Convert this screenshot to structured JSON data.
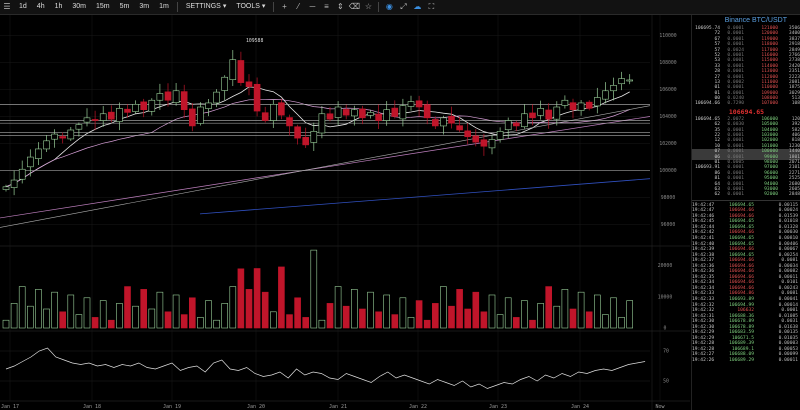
{
  "toolbar": {
    "menu_icon": "hamburger-icon",
    "intervals": [
      "1d",
      "4h",
      "1h",
      "30m",
      "15m",
      "5m",
      "3m",
      "1m"
    ],
    "settings_label": "SETTINGS",
    "tools_label": "TOOLS"
  },
  "chart_data": {
    "type": "candlestick",
    "x_ticks": [
      "Jan 17",
      "Jan 18",
      "Jan 19",
      "Jan 20",
      "Jan 21",
      "Jan 22",
      "Jan 23",
      "Jan 24",
      "Now"
    ],
    "price_ticks": [
      "110000",
      "108000",
      "106000",
      "104000",
      "102000",
      "100000",
      "98000",
      "96000"
    ],
    "price_range": [
      94500,
      111500
    ],
    "annotation": "109588",
    "volume_ticks": [
      "20000",
      "10000",
      "0"
    ],
    "volume_range": [
      0,
      26000
    ],
    "rsi_ticks": [
      "70",
      "50"
    ],
    "rsi_range": [
      38,
      82
    ],
    "up_color": "#9ad09a",
    "down_color": "#c0152a"
  },
  "orderbook": {
    "title": "Binance BTC/USDT",
    "asks": [
      [
        "106695.74",
        "0.0001",
        "121000",
        "3506"
      ],
      [
        "72",
        "0.0001",
        "120000",
        "3400"
      ],
      [
        "67",
        "0.0001",
        "119000",
        "3837"
      ],
      [
        "57",
        "0.0001",
        "118000",
        "2918"
      ],
      [
        "57",
        "0.0024",
        "117000",
        "2849"
      ],
      [
        "52",
        "0.0001",
        "116000",
        "2766"
      ],
      [
        "53",
        "0.0001",
        "115000",
        "2738"
      ],
      [
        "33",
        "0.0001",
        "114000",
        "2420"
      ],
      [
        "28",
        "0.0001",
        "113000",
        "2351"
      ],
      [
        "27",
        "0.0001",
        "112000",
        "2223"
      ],
      [
        "13",
        "0.0002",
        "111000",
        "2081"
      ],
      [
        "01",
        "0.0001",
        "110000",
        "1875"
      ],
      [
        "01",
        "0.0001",
        "109000",
        "3029"
      ],
      [
        "00",
        "0.0240",
        "108000",
        "513"
      ],
      [
        "106694.66",
        "0.7290",
        "107000",
        "108"
      ]
    ],
    "mid_price": "106694.65",
    "bids": [
      [
        "106694.65",
        "2.0072",
        "106000",
        "120"
      ],
      [
        "62",
        "0.0030",
        "105000",
        "392"
      ],
      [
        "35",
        "0.0001",
        "104000",
        "582"
      ],
      [
        "22",
        "0.0001",
        "103000",
        "406"
      ],
      [
        "12",
        "0.0001",
        "102000",
        "818"
      ],
      [
        "10",
        "0.0001",
        "101000",
        "1230"
      ],
      [
        "07",
        "0.0001",
        "100000",
        "1440"
      ],
      [
        "06",
        "0.0001",
        "99000",
        "1801"
      ],
      [
        "01",
        "0.0005",
        "98000",
        "2071"
      ],
      [
        "106693.91",
        "0.0001",
        "97000",
        "2101"
      ],
      [
        "86",
        "0.0001",
        "96000",
        "2271"
      ],
      [
        "81",
        "0.0001",
        "95000",
        "2525"
      ],
      [
        "64",
        "0.0001",
        "94000",
        "2680"
      ],
      [
        "63",
        "0.0001",
        "93000",
        "2605"
      ],
      [
        "62",
        "0.0001",
        "92000",
        "2848"
      ]
    ]
  },
  "trades": [
    [
      "19:42:47",
      "106694.65",
      "0.00115",
      "b"
    ],
    [
      "19:42:47",
      "106694.66",
      "0.00024",
      "s"
    ],
    [
      "19:42:46",
      "106694.66",
      "0.01539",
      "s"
    ],
    [
      "19:42:45",
      "106694.65",
      "0.01018",
      "b"
    ],
    [
      "19:42:44",
      "106694.65",
      "0.01328",
      "b"
    ],
    [
      "19:42:42",
      "106694.66",
      "0.00030",
      "s"
    ],
    [
      "19:42:41",
      "106694.65",
      "0.00810",
      "b"
    ],
    [
      "19:42:40",
      "106694.65",
      "0.00406",
      "b"
    ],
    [
      "19:42:39",
      "106694.66",
      "0.00067",
      "s"
    ],
    [
      "19:42:38",
      "106694.65",
      "0.00254",
      "b"
    ],
    [
      "19:42:37",
      "106694.66",
      "0.0081",
      "s"
    ],
    [
      "19:42:36",
      "106694.66",
      "0.00034",
      "s"
    ],
    [
      "19:42:36",
      "106694.66",
      "0.00082",
      "s"
    ],
    [
      "19:42:35",
      "106694.66",
      "0.00011",
      "s"
    ],
    [
      "19:42:34",
      "106694.66",
      "0.0101",
      "s"
    ],
    [
      "19:42:34",
      "106694.66",
      "0.00243",
      "s"
    ],
    [
      "19:42:33",
      "106694.86",
      "0.0081",
      "s"
    ],
    [
      "19:42:33",
      "106693.89",
      "0.00041",
      "b"
    ],
    [
      "19:42:32",
      "106694.99",
      "0.00014",
      "b"
    ],
    [
      "19:42:32",
      "106632",
      "0.0001",
      "s"
    ],
    [
      "19:42:31",
      "106688.36",
      "0.01085",
      "b"
    ],
    [
      "19:42:30",
      "106678.89",
      "0.0031",
      "b"
    ],
    [
      "19:42:30",
      "106678.89",
      "0.01638",
      "b"
    ],
    [
      "19:42:29",
      "106683.59",
      "0.00135",
      "b"
    ],
    [
      "19:42:29",
      "106671.5",
      "0.01035",
      "b"
    ],
    [
      "19:42:28",
      "106689.39",
      "0.00003",
      "b"
    ],
    [
      "19:42:28",
      "106689.1",
      "0.00053",
      "b"
    ],
    [
      "19:42:27",
      "106688.09",
      "0.00099",
      "b"
    ],
    [
      "19:42:26",
      "106689.29",
      "0.00011",
      "b"
    ]
  ]
}
